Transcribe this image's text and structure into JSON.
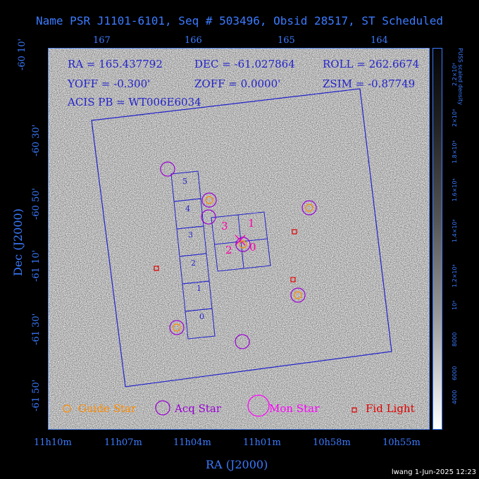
{
  "title": "Name PSR J1101-6101, Seq # 503496, Obsid 28517, ST Scheduled",
  "info": {
    "ra": "RA = 165.437792",
    "dec": "DEC = -61.027864",
    "roll": "ROLL = 262.6674",
    "yoff": "YOFF =  -0.300'",
    "zoff": "ZOFF =  0.0000'",
    "zsim": "ZSIM = -0.87749",
    "acis_pb": "ACIS PB = WT006E6034"
  },
  "axes": {
    "top_ticks": [
      "167",
      "166",
      "165",
      "164"
    ],
    "left_ticks": [
      "-60 10'",
      "-60 30'",
      "-60 50'",
      "-61 10'",
      "-61 30'",
      "-61 50'"
    ],
    "bottom_ticks": [
      "11h10m",
      "11h07m",
      "11h04m",
      "11h01m",
      "10h58m",
      "10h55m"
    ],
    "xlabel": "RA (J2000)",
    "ylabel": "Dec (J2000)"
  },
  "colorbar": {
    "title": "PUSS scaled density",
    "ticks": [
      "4000",
      "6000",
      "8000",
      "10⁴",
      "1.2×10⁴",
      "1.4×10⁴",
      "1.6×10⁴",
      "1.8×10⁴",
      "2×10⁴",
      "2.2×10⁴"
    ]
  },
  "chips": [
    "0",
    "1",
    "2",
    "3",
    "4",
    "5"
  ],
  "acis_i": [
    "0",
    "1",
    "2",
    "3"
  ],
  "legend": {
    "guide": "Guide Star",
    "acq": "Acq Star",
    "mon": "Mon Star",
    "fid": "Fid Light"
  },
  "colors": {
    "axis": "#3b7bff",
    "guide": "#ff8c00",
    "acq": "#9b00d4",
    "mon": "#ff00ff",
    "fid": "#e00000"
  },
  "footer": "lwang  1-Jun-2025 12:23"
}
